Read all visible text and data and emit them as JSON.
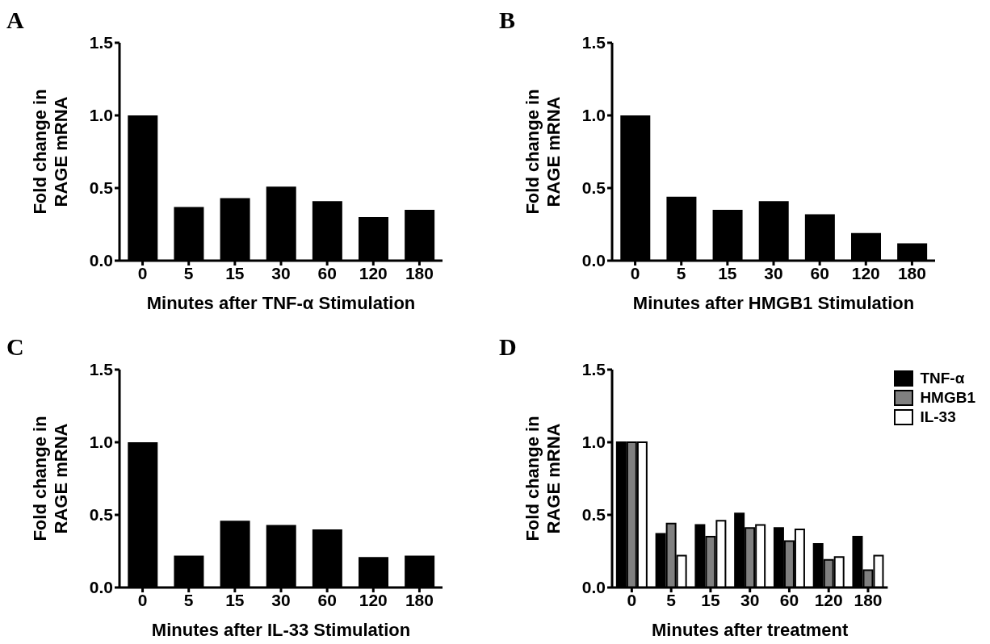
{
  "chart_data": [
    {
      "type": "bar",
      "title": "A",
      "xlabel": "Minutes after TNF-α Stimulation",
      "ylabel": "Fold change in\nRAGE mRNA",
      "categories": [
        "0",
        "5",
        "15",
        "30",
        "60",
        "120",
        "180"
      ],
      "values": [
        1.0,
        0.37,
        0.43,
        0.51,
        0.41,
        0.3,
        0.35
      ],
      "color": "#000000",
      "ylim": [
        0,
        1.5
      ],
      "yticks": [
        {
          "value": 0,
          "label": "0.0"
        },
        {
          "value": 0.5,
          "label": "0.5"
        },
        {
          "value": 1,
          "label": "1.0"
        },
        {
          "value": 1.5,
          "label": "1.5"
        }
      ],
      "grid": false
    },
    {
      "type": "bar",
      "title": "B",
      "xlabel": "Minutes after HMGB1 Stimulation",
      "ylabel": "Fold change in\nRAGE mRNA",
      "categories": [
        "0",
        "5",
        "15",
        "30",
        "60",
        "120",
        "180"
      ],
      "values": [
        1.0,
        0.44,
        0.35,
        0.41,
        0.32,
        0.19,
        0.12
      ],
      "color": "#000000",
      "ylim": [
        0,
        1.5
      ],
      "yticks": [
        {
          "value": 0,
          "label": "0.0"
        },
        {
          "value": 0.5,
          "label": "0.5"
        },
        {
          "value": 1,
          "label": "1.0"
        },
        {
          "value": 1.5,
          "label": "1.5"
        }
      ],
      "grid": false
    },
    {
      "type": "bar",
      "title": "C",
      "xlabel": "Minutes after IL-33 Stimulation",
      "ylabel": "Fold change in\nRAGE mRNA",
      "categories": [
        "0",
        "5",
        "15",
        "30",
        "60",
        "120",
        "180"
      ],
      "values": [
        1.0,
        0.22,
        0.46,
        0.43,
        0.4,
        0.21,
        0.22
      ],
      "color": "#000000",
      "ylim": [
        0,
        1.5
      ],
      "yticks": [
        {
          "value": 0,
          "label": "0.0"
        },
        {
          "value": 0.5,
          "label": "0.5"
        },
        {
          "value": 1,
          "label": "1.0"
        },
        {
          "value": 1.5,
          "label": "1.5"
        }
      ],
      "grid": false
    },
    {
      "type": "bar",
      "title": "D",
      "xlabel": "Minutes after treatment",
      "ylabel": "Fold change in\nRAGE mRNA",
      "categories": [
        "0",
        "5",
        "15",
        "30",
        "60",
        "120",
        "180"
      ],
      "series": [
        {
          "name": "TNF-α",
          "color": "#000000",
          "values": [
            1.0,
            0.37,
            0.43,
            0.51,
            0.41,
            0.3,
            0.35
          ]
        },
        {
          "name": "HMGB1",
          "color": "#808080",
          "values": [
            1.0,
            0.44,
            0.35,
            0.41,
            0.32,
            0.19,
            0.12
          ]
        },
        {
          "name": "IL-33",
          "color": "#ffffff",
          "values": [
            1.0,
            0.22,
            0.46,
            0.43,
            0.4,
            0.21,
            0.22
          ]
        }
      ],
      "ylim": [
        0,
        1.5
      ],
      "yticks": [
        {
          "value": 0,
          "label": "0.0"
        },
        {
          "value": 0.5,
          "label": "0.5"
        },
        {
          "value": 1,
          "label": "1.0"
        },
        {
          "value": 1.5,
          "label": "1.5"
        }
      ],
      "grid": false,
      "legend": "top right"
    }
  ]
}
